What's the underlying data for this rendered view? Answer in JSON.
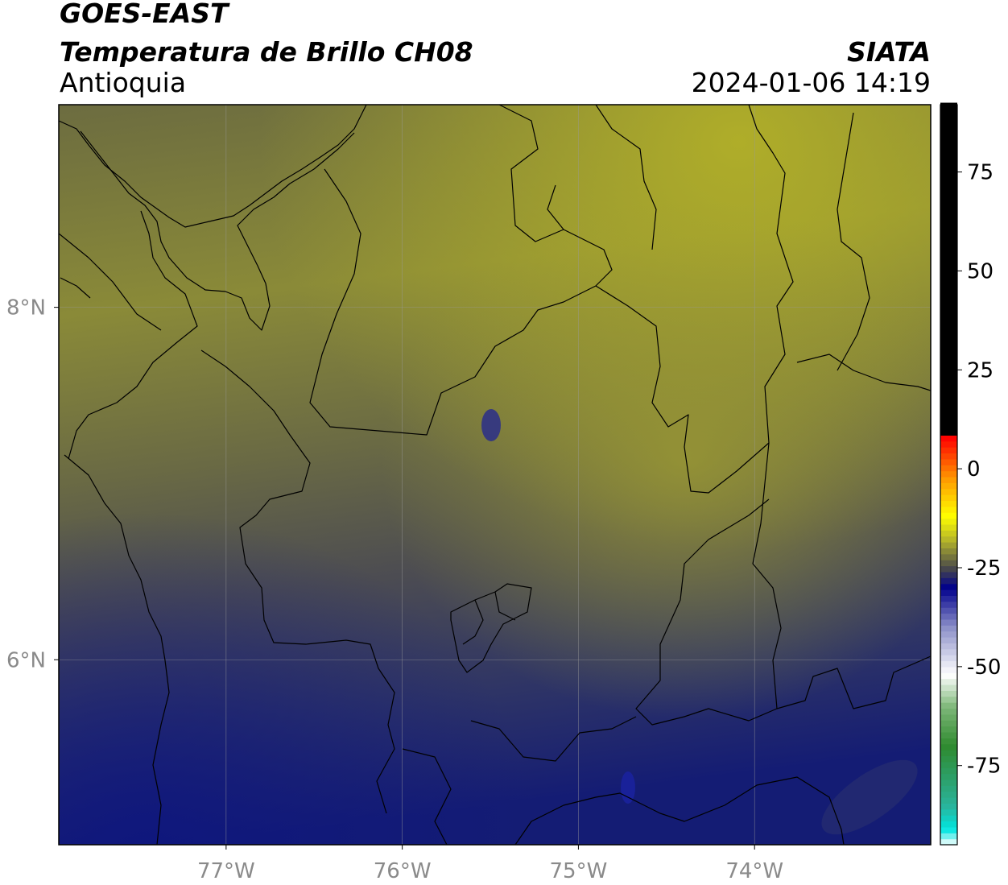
{
  "header": {
    "satellite": "GOES-EAST",
    "product": "Temperatura de Brillo CH08",
    "region": "Antioquia",
    "agency": "SIATA",
    "datetime": "2024-01-06 14:19"
  },
  "map": {
    "lon_range": [
      -77.95,
      -73.0
    ],
    "lat_range": [
      4.95,
      9.15
    ],
    "lon_ticks": [
      {
        "value": -77,
        "label": "77°W"
      },
      {
        "value": -76,
        "label": "76°W"
      },
      {
        "value": -75,
        "label": "75°W"
      },
      {
        "value": -74,
        "label": "74°W"
      }
    ],
    "lat_ticks": [
      {
        "value": 8,
        "label": "8°N"
      },
      {
        "value": 6,
        "label": "6°N"
      }
    ],
    "grid": true,
    "boundaries": "coastline, country, department and municipal borders (black lines)"
  },
  "colorbar": {
    "orientation": "vertical",
    "range": [
      -95,
      92
    ],
    "ticks": [
      {
        "value": 75,
        "label": "75"
      },
      {
        "value": 50,
        "label": "50"
      },
      {
        "value": 25,
        "label": "25"
      },
      {
        "value": 0,
        "label": "0"
      },
      {
        "value": -25,
        "label": "-25"
      },
      {
        "value": -50,
        "label": "-50"
      },
      {
        "value": -75,
        "label": "-75"
      }
    ],
    "stops": [
      {
        "value": -95,
        "color": "#ffffff"
      },
      {
        "value": -91,
        "color": "#00e5e0"
      },
      {
        "value": -85,
        "color": "#2ab39a"
      },
      {
        "value": -70,
        "color": "#2f8a2f"
      },
      {
        "value": -60,
        "color": "#7fb87a"
      },
      {
        "value": -52,
        "color": "#ffffff"
      },
      {
        "value": -40,
        "color": "#8c90c8"
      },
      {
        "value": -30,
        "color": "#00008c"
      },
      {
        "value": -25,
        "color": "#4a4a4a"
      },
      {
        "value": -18,
        "color": "#b4b42a"
      },
      {
        "value": -12,
        "color": "#ffff00"
      },
      {
        "value": -3,
        "color": "#ffa000"
      },
      {
        "value": 8,
        "color": "#ff0000"
      },
      {
        "value": 9,
        "color": "#000000"
      },
      {
        "value": 92,
        "color": "#000000"
      }
    ]
  },
  "colors": {
    "field_north": "#a4a22c",
    "field_mid": "#686845",
    "field_south": "#1c2470",
    "border": "#000000",
    "gridline": "#9a9a9a"
  }
}
